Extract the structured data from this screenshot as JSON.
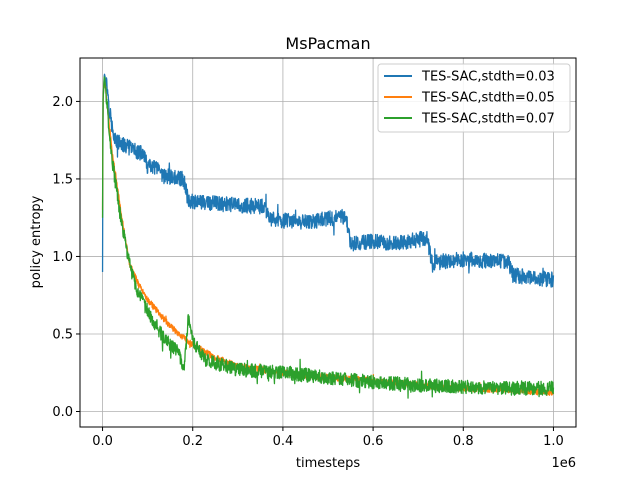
{
  "chart_data": {
    "type": "line",
    "title": "MsPacman",
    "xlabel": "timesteps",
    "ylabel": "policy entropy",
    "x_scale_label": "1e6",
    "xlim": [
      -0.05,
      1.05
    ],
    "ylim": [
      -0.1,
      2.28
    ],
    "xticks": [
      0.0,
      0.2,
      0.4,
      0.6,
      0.8,
      1.0
    ],
    "xtick_labels": [
      "0.0",
      "0.2",
      "0.4",
      "0.6",
      "0.8",
      "1.0"
    ],
    "yticks": [
      0.0,
      0.5,
      1.0,
      1.5,
      2.0
    ],
    "ytick_labels": [
      "0.0",
      "0.5",
      "1.0",
      "1.5",
      "2.0"
    ],
    "grid": true,
    "legend_position": "top-right",
    "series": [
      {
        "name": "TES-SAC,stdth=0.03",
        "color": "#1f77b4",
        "noise": 0.05,
        "points": [
          [
            0.0,
            0.9
          ],
          [
            0.001,
            2.0
          ],
          [
            0.004,
            2.18
          ],
          [
            0.01,
            2.1
          ],
          [
            0.02,
            1.85
          ],
          [
            0.03,
            1.74
          ],
          [
            0.06,
            1.7
          ],
          [
            0.09,
            1.66
          ],
          [
            0.1,
            1.58
          ],
          [
            0.12,
            1.57
          ],
          [
            0.13,
            1.52
          ],
          [
            0.18,
            1.5
          ],
          [
            0.19,
            1.36
          ],
          [
            0.25,
            1.34
          ],
          [
            0.3,
            1.33
          ],
          [
            0.36,
            1.32
          ],
          [
            0.37,
            1.24
          ],
          [
            0.45,
            1.22
          ],
          [
            0.54,
            1.26
          ],
          [
            0.55,
            1.08
          ],
          [
            0.6,
            1.1
          ],
          [
            0.65,
            1.08
          ],
          [
            0.72,
            1.12
          ],
          [
            0.73,
            0.96
          ],
          [
            0.8,
            0.98
          ],
          [
            0.9,
            0.97
          ],
          [
            0.91,
            0.88
          ],
          [
            1.0,
            0.85
          ]
        ]
      },
      {
        "name": "TES-SAC,stdth=0.05",
        "color": "#ff7f0e",
        "noise": 0.02,
        "points": [
          [
            0.0,
            1.3
          ],
          [
            0.001,
            2.0
          ],
          [
            0.004,
            2.16
          ],
          [
            0.02,
            1.7
          ],
          [
            0.04,
            1.3
          ],
          [
            0.06,
            0.95
          ],
          [
            0.08,
            0.82
          ],
          [
            0.1,
            0.72
          ],
          [
            0.15,
            0.55
          ],
          [
            0.2,
            0.43
          ],
          [
            0.25,
            0.35
          ],
          [
            0.3,
            0.29
          ],
          [
            0.4,
            0.25
          ],
          [
            0.5,
            0.22
          ],
          [
            0.6,
            0.2
          ],
          [
            0.7,
            0.17
          ],
          [
            0.8,
            0.15
          ],
          [
            0.9,
            0.14
          ],
          [
            1.0,
            0.12
          ]
        ]
      },
      {
        "name": "TES-SAC,stdth=0.07",
        "color": "#2ca02c",
        "noise": 0.045,
        "points": [
          [
            0.0,
            1.25
          ],
          [
            0.001,
            2.0
          ],
          [
            0.004,
            2.17
          ],
          [
            0.02,
            1.65
          ],
          [
            0.04,
            1.25
          ],
          [
            0.06,
            0.95
          ],
          [
            0.08,
            0.75
          ],
          [
            0.1,
            0.65
          ],
          [
            0.13,
            0.5
          ],
          [
            0.15,
            0.43
          ],
          [
            0.17,
            0.38
          ],
          [
            0.18,
            0.25
          ],
          [
            0.19,
            0.6
          ],
          [
            0.2,
            0.45
          ],
          [
            0.23,
            0.33
          ],
          [
            0.3,
            0.27
          ],
          [
            0.4,
            0.25
          ],
          [
            0.5,
            0.22
          ],
          [
            0.6,
            0.19
          ],
          [
            0.7,
            0.17
          ],
          [
            0.8,
            0.16
          ],
          [
            0.9,
            0.15
          ],
          [
            1.0,
            0.15
          ]
        ]
      }
    ]
  }
}
